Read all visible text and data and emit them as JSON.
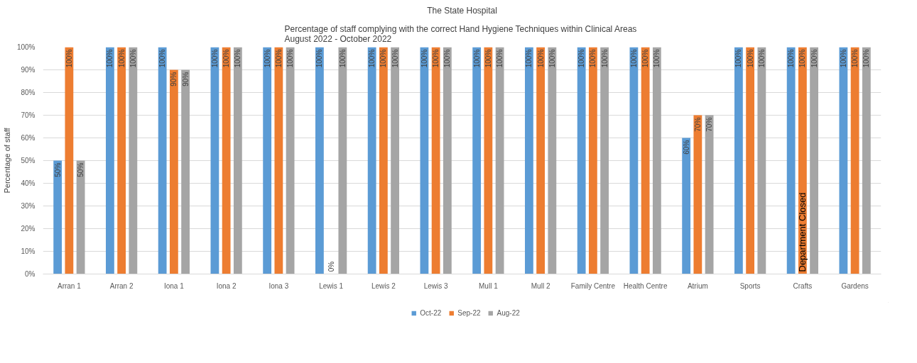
{
  "chart_data": {
    "type": "bar",
    "title": "The State Hospital",
    "subtitle": "Percentage of staff complying with the correct  Hand Hygiene Techniques within Clinical Areas\nAugust 2022 - October 2022",
    "ylabel": "Percentage of staff",
    "categories": [
      "Arran 1",
      "Arran 2",
      "Iona 1",
      "Iona 2",
      "Iona 3",
      "Lewis 1",
      "Lewis 2",
      "Lewis 3",
      "Mull 1",
      "Mull 2",
      "Family Centre",
      "Health Centre",
      "Atrium",
      "Sports",
      "Crafts",
      "Gardens"
    ],
    "series": [
      {
        "name": "Oct-22",
        "color": "#5b9bd5",
        "values": [
          50,
          100,
          100,
          100,
          100,
          100,
          100,
          100,
          100,
          100,
          100,
          100,
          60,
          100,
          100,
          100
        ],
        "value_labels": [
          "50%",
          "100%",
          "100%",
          "100%",
          "100%",
          "100%",
          "100%",
          "100%",
          "100%",
          "100%",
          "100%",
          "100%",
          "60%",
          "100%",
          "100%",
          "100%"
        ]
      },
      {
        "name": "Sep-22",
        "color": "#ed7d31",
        "values": [
          100,
          100,
          90,
          100,
          100,
          0,
          100,
          100,
          100,
          100,
          100,
          100,
          70,
          100,
          100,
          100
        ],
        "value_labels": [
          "100%",
          "100%",
          "90%",
          "100%",
          "100%",
          "0%",
          "100%",
          "100%",
          "100%",
          "100%",
          "100%",
          "100%",
          "70%",
          "100%",
          "100%",
          "100%"
        ]
      },
      {
        "name": "Aug-22",
        "color": "#a5a5a5",
        "values": [
          50,
          100,
          90,
          100,
          100,
          100,
          100,
          100,
          100,
          100,
          100,
          100,
          70,
          100,
          100,
          100
        ],
        "value_labels": [
          "50%",
          "100%",
          "90%",
          "100%",
          "100%",
          "100%",
          "100%",
          "100%",
          "100%",
          "100%",
          "100%",
          "100%",
          "70%",
          "100%",
          "100%",
          "100%"
        ]
      }
    ],
    "ylim": [
      0,
      100
    ],
    "yticks": [
      {
        "value": 0,
        "label": "0%"
      },
      {
        "value": 10,
        "label": "10%"
      },
      {
        "value": 20,
        "label": "20%"
      },
      {
        "value": 30,
        "label": "30%"
      },
      {
        "value": 40,
        "label": "40%"
      },
      {
        "value": 50,
        "label": "50%"
      },
      {
        "value": 60,
        "label": "60%"
      },
      {
        "value": 70,
        "label": "70%"
      },
      {
        "value": 80,
        "label": "80%"
      },
      {
        "value": 90,
        "label": "90%"
      },
      {
        "value": 100,
        "label": "100%"
      }
    ],
    "annotations": [
      "Department Closed"
    ],
    "grid": "y",
    "legend": "bottom"
  }
}
